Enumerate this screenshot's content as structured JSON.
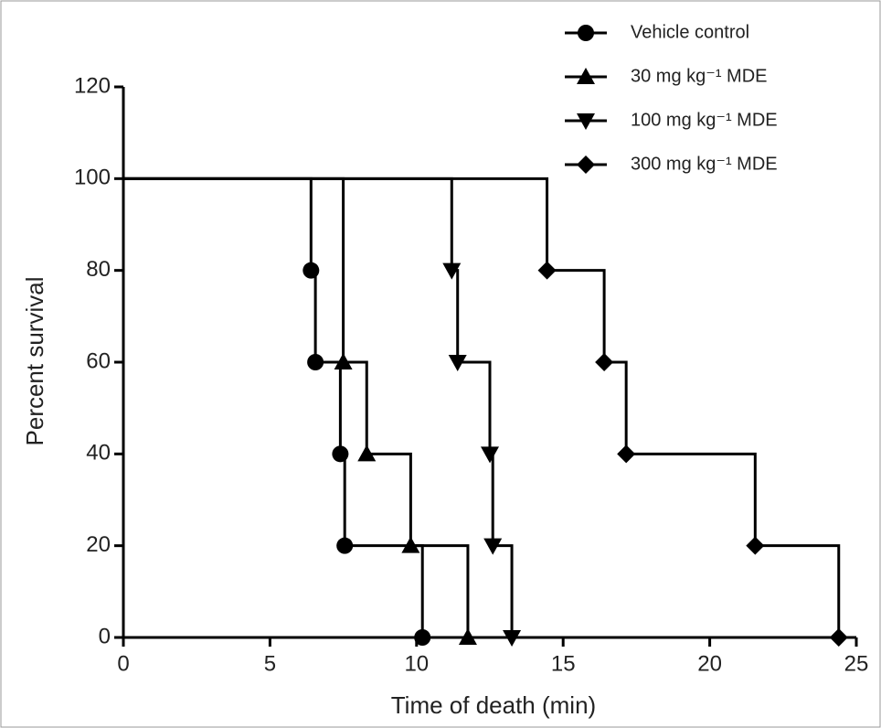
{
  "chart_data": {
    "type": "survival",
    "xlabel": "Time of death (min)",
    "ylabel": "Percent survival",
    "xlim": [
      0,
      25
    ],
    "xticks": [
      0,
      5,
      10,
      15,
      20,
      25
    ],
    "ylim": [
      0,
      120
    ],
    "yticks": [
      0,
      20,
      40,
      60,
      80,
      100,
      120
    ],
    "legend": "upper right",
    "series": [
      {
        "name": "Vehicle control",
        "color": "#000000",
        "marker": "circle",
        "x": [
          0,
          6.4,
          6.55,
          7.4,
          7.55,
          10.2
        ],
        "values": [
          100,
          80,
          60,
          40,
          20,
          0
        ]
      },
      {
        "name": "30 mg kg⁻¹ MDE",
        "color": "#000000",
        "marker": "triangle-up",
        "x": [
          0,
          7.5,
          8.3,
          9.8,
          11.75
        ],
        "values": [
          100,
          60,
          40,
          20,
          0
        ]
      },
      {
        "name": "100 mg kg⁻¹ MDE",
        "color": "#000000",
        "marker": "triangle-down",
        "x": [
          0,
          11.2,
          11.4,
          12.5,
          12.6,
          13.25
        ],
        "values": [
          100,
          80,
          60,
          40,
          20,
          0
        ]
      },
      {
        "name": "300 mg kg⁻¹ MDE",
        "color": "#000000",
        "marker": "diamond",
        "x": [
          0,
          14.45,
          16.4,
          17.15,
          21.55,
          24.4
        ],
        "values": [
          100,
          80,
          60,
          40,
          20,
          0
        ]
      }
    ]
  }
}
